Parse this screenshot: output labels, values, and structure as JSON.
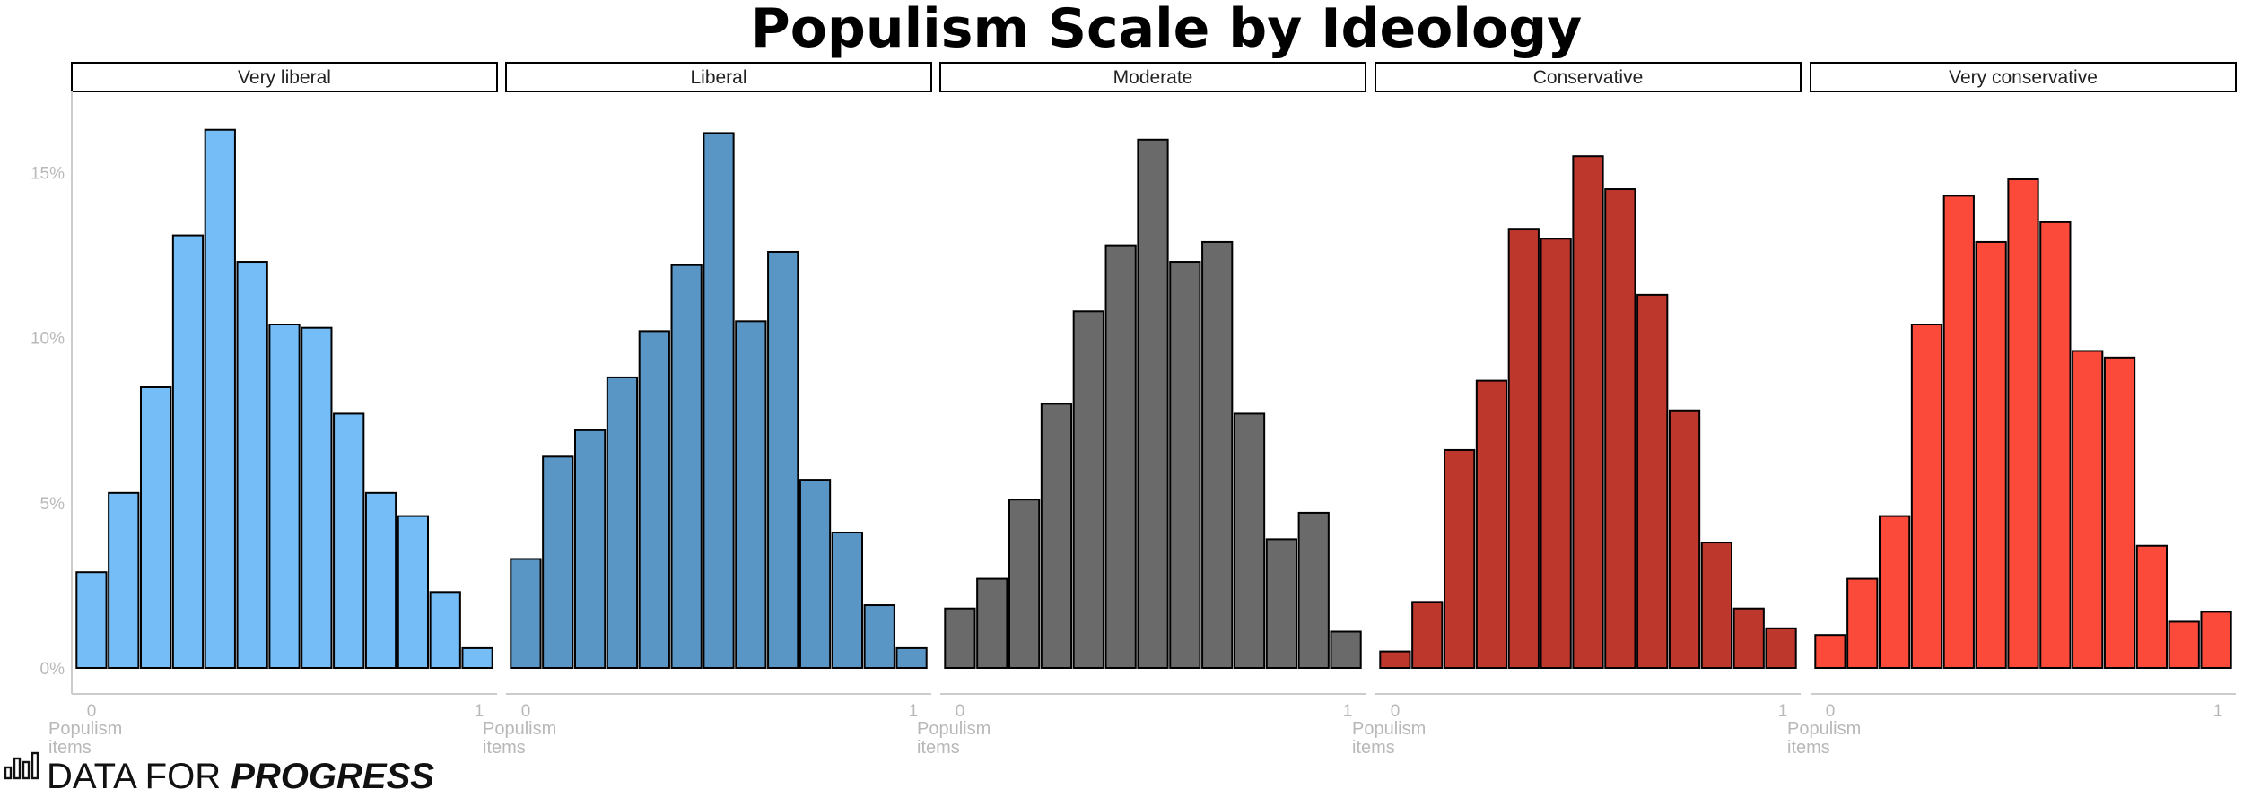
{
  "chart_data": {
    "type": "bar",
    "title": "Populism Scale by Ideology",
    "xlabel": "Populism\nitems",
    "ylabel": "",
    "ylim": [
      0,
      16.7
    ],
    "y_ticks": [
      {
        "value": 0,
        "label": "0%"
      },
      {
        "value": 5,
        "label": "5%"
      },
      {
        "value": 10,
        "label": "10%"
      },
      {
        "value": 15,
        "label": "15%"
      }
    ],
    "x_ticks": [
      {
        "value": 0,
        "label": "0"
      },
      {
        "value": 1,
        "label": "1"
      }
    ],
    "grid": false,
    "facets": [
      {
        "name": "Very liberal",
        "color": "#74BDF7",
        "values": [
          2.9,
          5.3,
          8.5,
          13.1,
          16.3,
          12.3,
          10.4,
          10.3,
          7.7,
          5.3,
          4.6,
          2.3,
          0.6
        ]
      },
      {
        "name": "Liberal",
        "color": "#5A96C5",
        "values": [
          3.3,
          6.4,
          7.2,
          8.8,
          10.2,
          12.2,
          16.2,
          10.5,
          12.6,
          5.7,
          4.1,
          1.9,
          0.6
        ]
      },
      {
        "name": "Moderate",
        "color": "#6A6A6A",
        "values": [
          1.8,
          2.7,
          5.1,
          8.0,
          10.8,
          12.8,
          16.0,
          12.3,
          12.9,
          7.7,
          3.9,
          4.7,
          1.1
        ]
      },
      {
        "name": "Conservative",
        "color": "#BE372D",
        "values": [
          0.5,
          2.0,
          6.6,
          8.7,
          13.3,
          13.0,
          15.5,
          14.5,
          11.3,
          7.8,
          3.8,
          1.8,
          1.2
        ]
      },
      {
        "name": "Very conservative",
        "color": "#FB4A3A",
        "values": [
          1.0,
          2.7,
          4.6,
          10.4,
          14.3,
          12.9,
          14.8,
          13.5,
          9.6,
          9.4,
          3.7,
          1.4,
          1.7
        ]
      }
    ]
  },
  "brand": {
    "text_regular": "DATA FOR ",
    "text_bold": "PROGRESS",
    "icon": "bar-chart-logo-icon"
  }
}
